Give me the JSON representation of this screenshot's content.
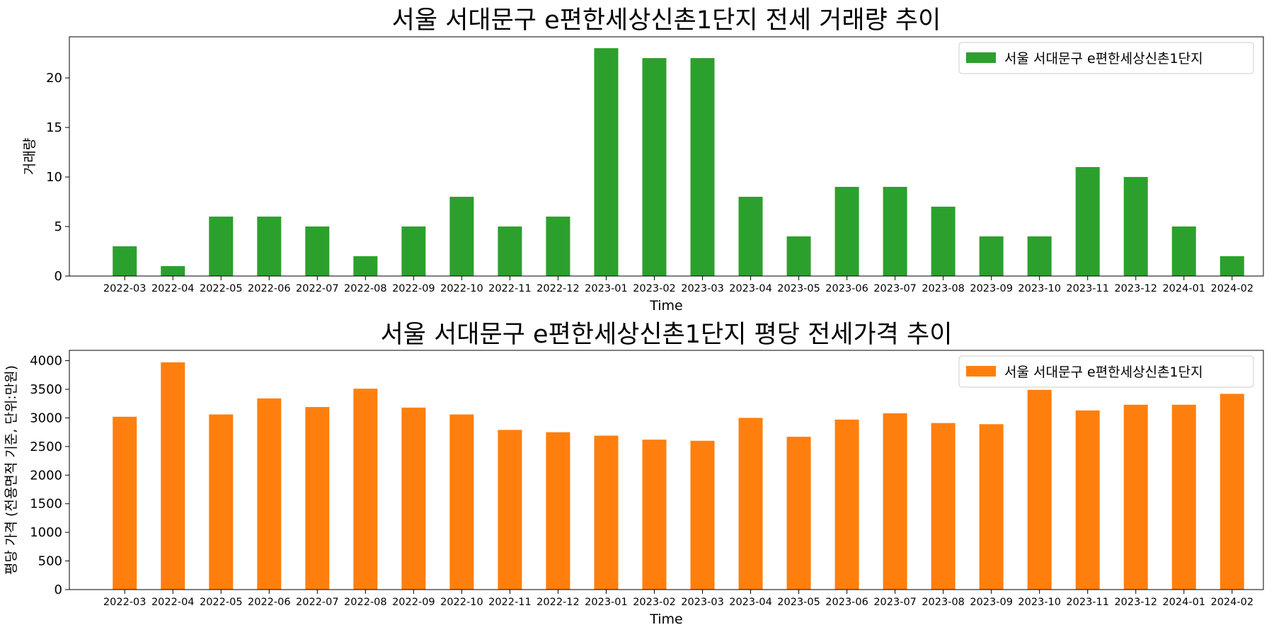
{
  "chart_data": [
    {
      "type": "bar",
      "title": "서울 서대문구 e편한세상신촌1단지 전세 거래량 추이",
      "xlabel": "Time",
      "ylabel": "거래량",
      "categories": [
        "2022-03",
        "2022-04",
        "2022-05",
        "2022-06",
        "2022-07",
        "2022-08",
        "2022-09",
        "2022-10",
        "2022-11",
        "2022-12",
        "2023-01",
        "2023-02",
        "2023-03",
        "2023-04",
        "2023-05",
        "2023-06",
        "2023-07",
        "2023-08",
        "2023-09",
        "2023-10",
        "2023-11",
        "2023-12",
        "2024-01",
        "2024-02"
      ],
      "series": [
        {
          "name": "서울 서대문구 e편한세상신촌1단지",
          "color": "#2ca02c",
          "values": [
            3,
            1,
            6,
            6,
            5,
            2,
            5,
            8,
            5,
            6,
            23,
            22,
            22,
            8,
            4,
            9,
            9,
            7,
            4,
            4,
            11,
            10,
            5,
            2
          ]
        }
      ],
      "ylim": [
        0,
        24.15
      ],
      "yticks": [
        0,
        5,
        10,
        15,
        20
      ],
      "grid": false,
      "legend": "top-right"
    },
    {
      "type": "bar",
      "title": "서울 서대문구 e편한세상신촌1단지 평당 전세가격 추이",
      "xlabel": "Time",
      "ylabel": "평당 가격 (전용면적 기준, 단위:만원)",
      "categories": [
        "2022-03",
        "2022-04",
        "2022-05",
        "2022-06",
        "2022-07",
        "2022-08",
        "2022-09",
        "2022-10",
        "2022-11",
        "2022-12",
        "2023-01",
        "2023-02",
        "2023-03",
        "2023-04",
        "2023-05",
        "2023-06",
        "2023-07",
        "2023-08",
        "2023-09",
        "2023-10",
        "2023-11",
        "2023-12",
        "2024-01",
        "2024-02"
      ],
      "series": [
        {
          "name": "서울 서대문구 e편한세상신촌1단지",
          "color": "#ff7f0e",
          "values": [
            3020,
            3970,
            3060,
            3340,
            3190,
            3510,
            3180,
            3060,
            2790,
            2750,
            2690,
            2620,
            2600,
            3000,
            2670,
            2970,
            3080,
            2910,
            2890,
            3490,
            3130,
            3230,
            3230,
            3420
          ]
        }
      ],
      "ylim": [
        0,
        4180
      ],
      "yticks": [
        0,
        500,
        1000,
        1500,
        2000,
        2500,
        3000,
        3500,
        4000
      ],
      "grid": false,
      "legend": "top-right"
    }
  ]
}
